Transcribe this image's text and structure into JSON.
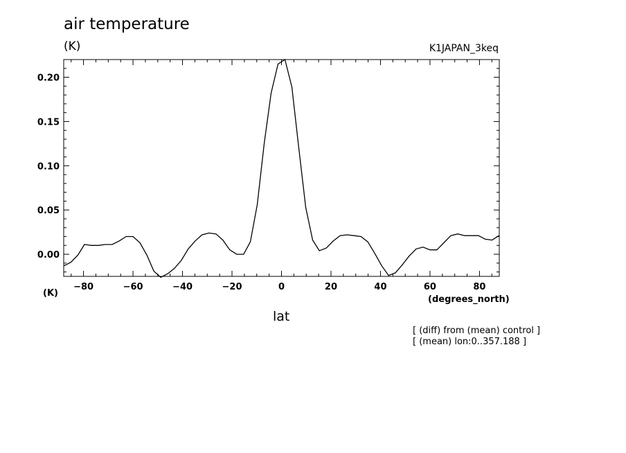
{
  "chart_data": {
    "type": "line",
    "title": "air temperature",
    "units": "(K)",
    "y_units": "(K)",
    "dataset_label": "K1JAPAN_3keq",
    "xlabel": "lat",
    "x_units": "(degrees_north)",
    "xlim": [
      -88,
      88
    ],
    "ylim": [
      -0.025,
      0.22
    ],
    "x_ticks": [
      -80,
      -60,
      -40,
      -20,
      0,
      20,
      40,
      60,
      80
    ],
    "x_tick_labels": [
      "−80",
      "−60",
      "−40",
      "−20",
      "0",
      "20",
      "40",
      "60",
      "80"
    ],
    "y_ticks": [
      0.0,
      0.05,
      0.1,
      0.15,
      0.2
    ],
    "y_tick_labels": [
      "0.00",
      "0.05",
      "0.10",
      "0.15",
      "0.20"
    ],
    "grid": false,
    "notes": [
      "[ (diff) from (mean) control ]",
      "[ (mean) lon:0..357.188 ]"
    ],
    "series": [
      {
        "x": [
          -87.9,
          -85.1,
          -82.3,
          -79.6,
          -76.8,
          -74.0,
          -71.2,
          -68.4,
          -65.6,
          -62.8,
          -60.0,
          -57.2,
          -54.4,
          -51.6,
          -48.8,
          -46.0,
          -43.3,
          -40.5,
          -37.7,
          -34.9,
          -32.1,
          -29.3,
          -26.5,
          -23.7,
          -20.9,
          -18.1,
          -15.3,
          -12.6,
          -9.8,
          -7.0,
          -4.2,
          -1.4,
          1.4,
          4.2,
          7.0,
          9.8,
          12.6,
          15.3,
          18.1,
          20.9,
          23.7,
          26.5,
          29.3,
          32.1,
          34.9,
          37.7,
          40.5,
          43.3,
          46.0,
          48.8,
          51.6,
          54.4,
          57.2,
          60.0,
          62.8,
          65.6,
          68.4,
          71.2,
          74.0,
          76.8,
          79.6,
          82.3,
          85.1,
          87.9
        ],
        "y": [
          -0.013,
          -0.009,
          -0.001,
          0.011,
          0.01,
          0.01,
          0.011,
          0.011,
          0.015,
          0.02,
          0.02,
          0.013,
          -0.001,
          -0.019,
          -0.026,
          -0.022,
          -0.016,
          -0.007,
          0.006,
          0.015,
          0.022,
          0.024,
          0.023,
          0.016,
          0.005,
          0.0,
          0.0,
          0.014,
          0.056,
          0.125,
          0.182,
          0.215,
          0.22,
          0.189,
          0.12,
          0.053,
          0.016,
          0.004,
          0.007,
          0.015,
          0.021,
          0.022,
          0.021,
          0.02,
          0.014,
          0.001,
          -0.013,
          -0.024,
          -0.021,
          -0.012,
          -0.002,
          0.006,
          0.008,
          0.005,
          0.005,
          0.013,
          0.021,
          0.023,
          0.021,
          0.021,
          0.021,
          0.017,
          0.016,
          0.021
        ]
      }
    ]
  }
}
